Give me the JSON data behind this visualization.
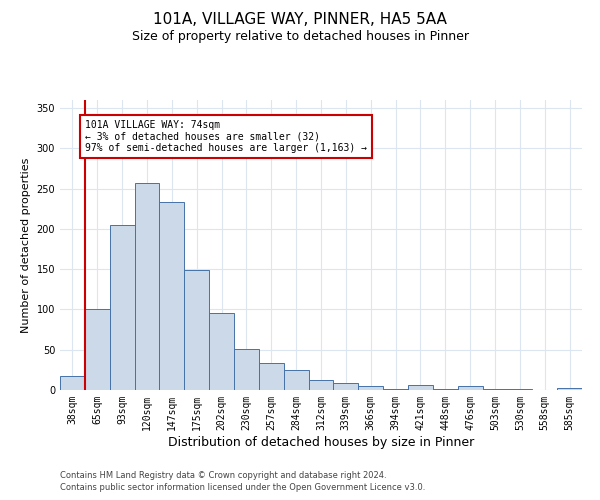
{
  "title1": "101A, VILLAGE WAY, PINNER, HA5 5AA",
  "title2": "Size of property relative to detached houses in Pinner",
  "xlabel": "Distribution of detached houses by size in Pinner",
  "ylabel": "Number of detached properties",
  "categories": [
    "38sqm",
    "65sqm",
    "93sqm",
    "120sqm",
    "147sqm",
    "175sqm",
    "202sqm",
    "230sqm",
    "257sqm",
    "284sqm",
    "312sqm",
    "339sqm",
    "366sqm",
    "394sqm",
    "421sqm",
    "448sqm",
    "476sqm",
    "503sqm",
    "530sqm",
    "558sqm",
    "585sqm"
  ],
  "values": [
    17,
    101,
    205,
    257,
    234,
    149,
    95,
    51,
    34,
    25,
    13,
    9,
    5,
    1,
    6,
    1,
    5,
    1,
    1,
    0,
    2
  ],
  "bar_color": "#ccd9e8",
  "bar_edge_color": "#4472a8",
  "vline_x": 1,
  "vline_color": "#cc0000",
  "annotation_lines": [
    "101A VILLAGE WAY: 74sqm",
    "← 3% of detached houses are smaller (32)",
    "97% of semi-detached houses are larger (1,163) →"
  ],
  "annotation_box_color": "#ffffff",
  "annotation_box_edge_color": "#cc0000",
  "ylim": [
    0,
    360
  ],
  "yticks": [
    0,
    50,
    100,
    150,
    200,
    250,
    300,
    350
  ],
  "footer1": "Contains HM Land Registry data © Crown copyright and database right 2024.",
  "footer2": "Contains public sector information licensed under the Open Government Licence v3.0.",
  "bg_color": "#ffffff",
  "grid_color": "#dce6f1",
  "title1_fontsize": 11,
  "title2_fontsize": 9,
  "xlabel_fontsize": 9,
  "ylabel_fontsize": 8,
  "tick_fontsize": 7,
  "footer_fontsize": 6,
  "ann_fontsize": 7
}
